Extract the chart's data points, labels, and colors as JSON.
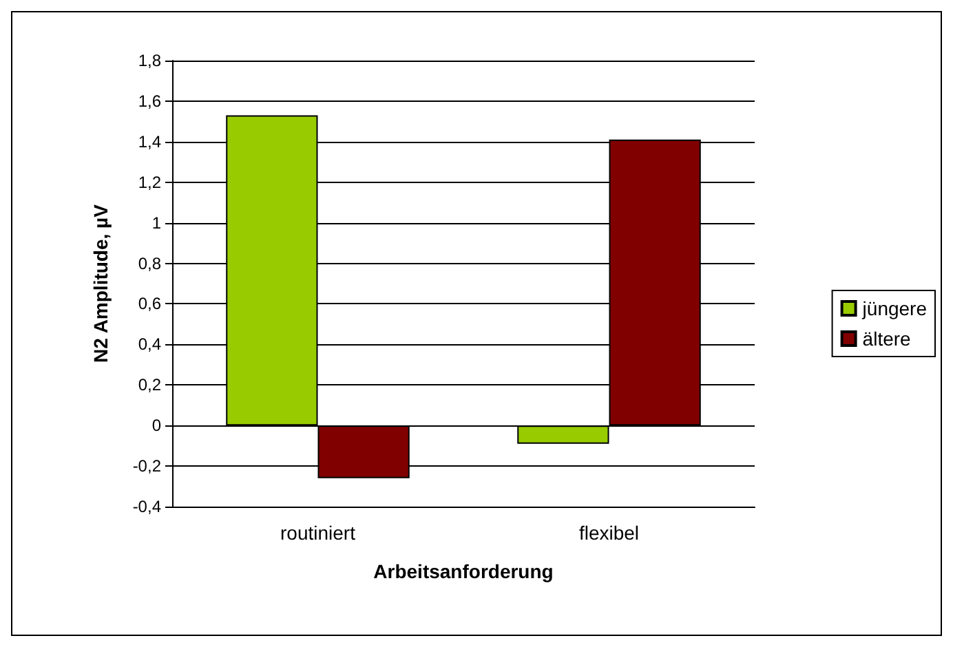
{
  "chart_data": {
    "type": "bar",
    "xlabel": "Arbeitsanforderung",
    "ylabel": "N2 Amplitude, µV",
    "categories": [
      "routiniert",
      "flexibel"
    ],
    "series": [
      {
        "name": "jüngere",
        "color": "#99cc00",
        "values": [
          1.53,
          -0.09
        ]
      },
      {
        "name": "ältere",
        "color": "#800000",
        "values": [
          -0.26,
          1.41
        ]
      }
    ],
    "ylim": [
      -0.4,
      1.8
    ],
    "yticks": [
      {
        "value": -0.4,
        "label": "-0,4"
      },
      {
        "value": -0.2,
        "label": "-0,2"
      },
      0,
      {
        "value": 0.2,
        "label": "0,2"
      },
      {
        "value": 0.4,
        "label": "0,4"
      },
      {
        "value": 0.6,
        "label": "0,6"
      },
      {
        "value": 0.8,
        "label": "0,8"
      },
      1,
      {
        "value": 1.2,
        "label": "1,2"
      },
      {
        "value": 1.4,
        "label": "1,4"
      },
      {
        "value": 1.6,
        "label": "1,6"
      },
      {
        "value": 1.8,
        "label": "1,8"
      }
    ],
    "grid": "y",
    "legend": "right"
  }
}
